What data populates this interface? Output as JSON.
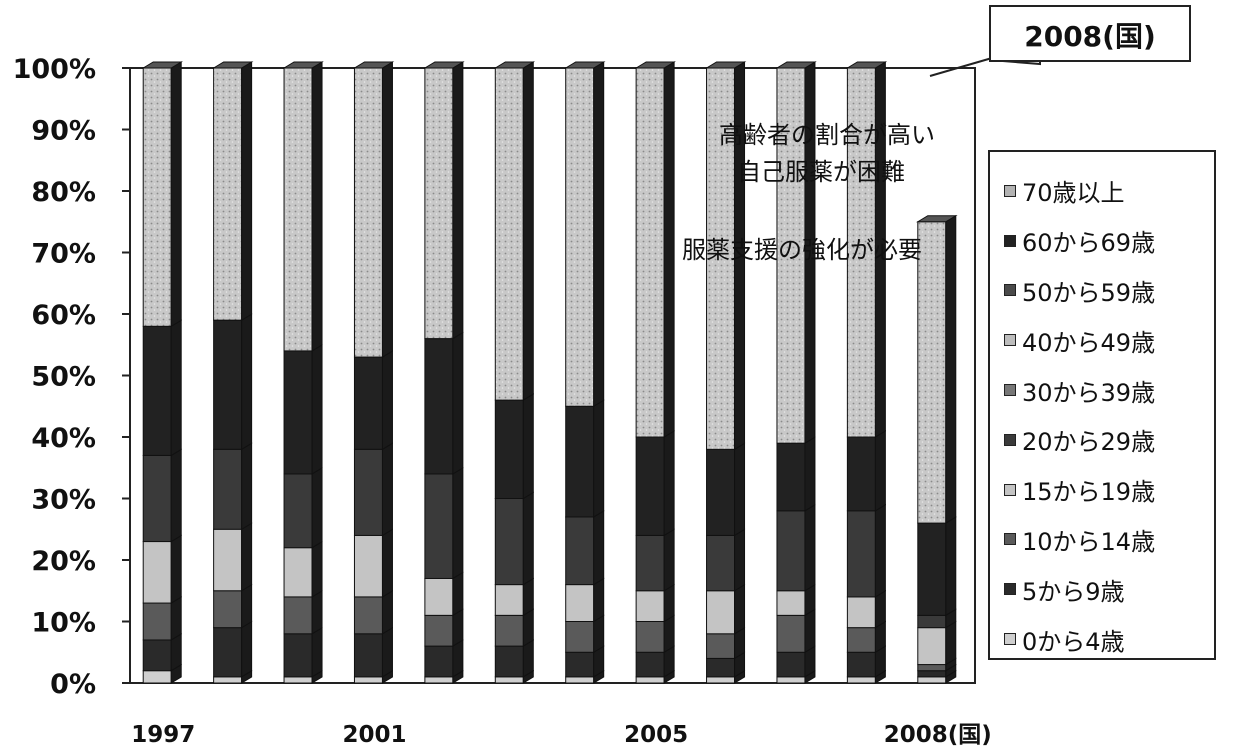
{
  "chart_data": {
    "type": "bar",
    "stacked": true,
    "percent_stacked": true,
    "categories": [
      "1997",
      "",
      "",
      "2001",
      "",
      "",
      "",
      "2005",
      "",
      "",
      "",
      "2008(国)"
    ],
    "ylim": [
      0,
      100
    ],
    "y_ticks": [
      "0%",
      "10%",
      "20%",
      "30%",
      "40%",
      "50%",
      "60%",
      "70%",
      "80%",
      "90%",
      "100%"
    ],
    "grid": true,
    "legend_position": "right",
    "series": [
      {
        "name": "0から4歳",
        "color": "#cfcfcf",
        "values": [
          2,
          1,
          1,
          1,
          1,
          1,
          1,
          1,
          1,
          1,
          1,
          1
        ]
      },
      {
        "name": "5から9歳",
        "color": "#2a2a2a",
        "values": [
          5,
          8,
          7,
          7,
          5,
          5,
          4,
          4,
          3,
          4,
          4,
          1
        ]
      },
      {
        "name": "10から14歳",
        "color": "#5a5a5a",
        "values": [
          6,
          6,
          6,
          6,
          5,
          5,
          5,
          5,
          4,
          6,
          4,
          1
        ]
      },
      {
        "name": "15から19歳",
        "color": "#c4c4c4",
        "values": [
          10,
          10,
          8,
          10,
          6,
          5,
          6,
          5,
          7,
          4,
          5,
          6
        ]
      },
      {
        "name": "20から29歳",
        "color": "#3a3a3a",
        "values": [
          14,
          13,
          12,
          14,
          17,
          14,
          11,
          9,
          9,
          13,
          14,
          2
        ]
      },
      {
        "name": "30から39歳",
        "color": "#777777",
        "values": [
          0,
          0,
          0,
          0,
          0,
          0,
          0,
          0,
          0,
          0,
          0,
          0
        ]
      },
      {
        "name": "40から49歳",
        "color": "#bdbdbd",
        "values": [
          0,
          0,
          0,
          0,
          0,
          0,
          0,
          0,
          0,
          0,
          0,
          0
        ]
      },
      {
        "name": "50から59歳",
        "color": "#4a4a4a",
        "values": [
          0,
          0,
          0,
          0,
          0,
          0,
          0,
          0,
          0,
          0,
          0,
          0
        ]
      },
      {
        "name": "60から69歳",
        "color": "#222222",
        "values": [
          21,
          21,
          20,
          15,
          22,
          16,
          18,
          16,
          14,
          11,
          12,
          15
        ]
      },
      {
        "name": "70歳以上",
        "color": "#b3b3b3",
        "values": [
          42,
          41,
          46,
          47,
          44,
          54,
          55,
          60,
          62,
          61,
          60,
          49
        ]
      }
    ],
    "annotations": [
      "高齢者の割合が高い",
      "自己服薬が困難",
      "服薬支援の強化が必要"
    ],
    "callout": "2008(国)"
  }
}
